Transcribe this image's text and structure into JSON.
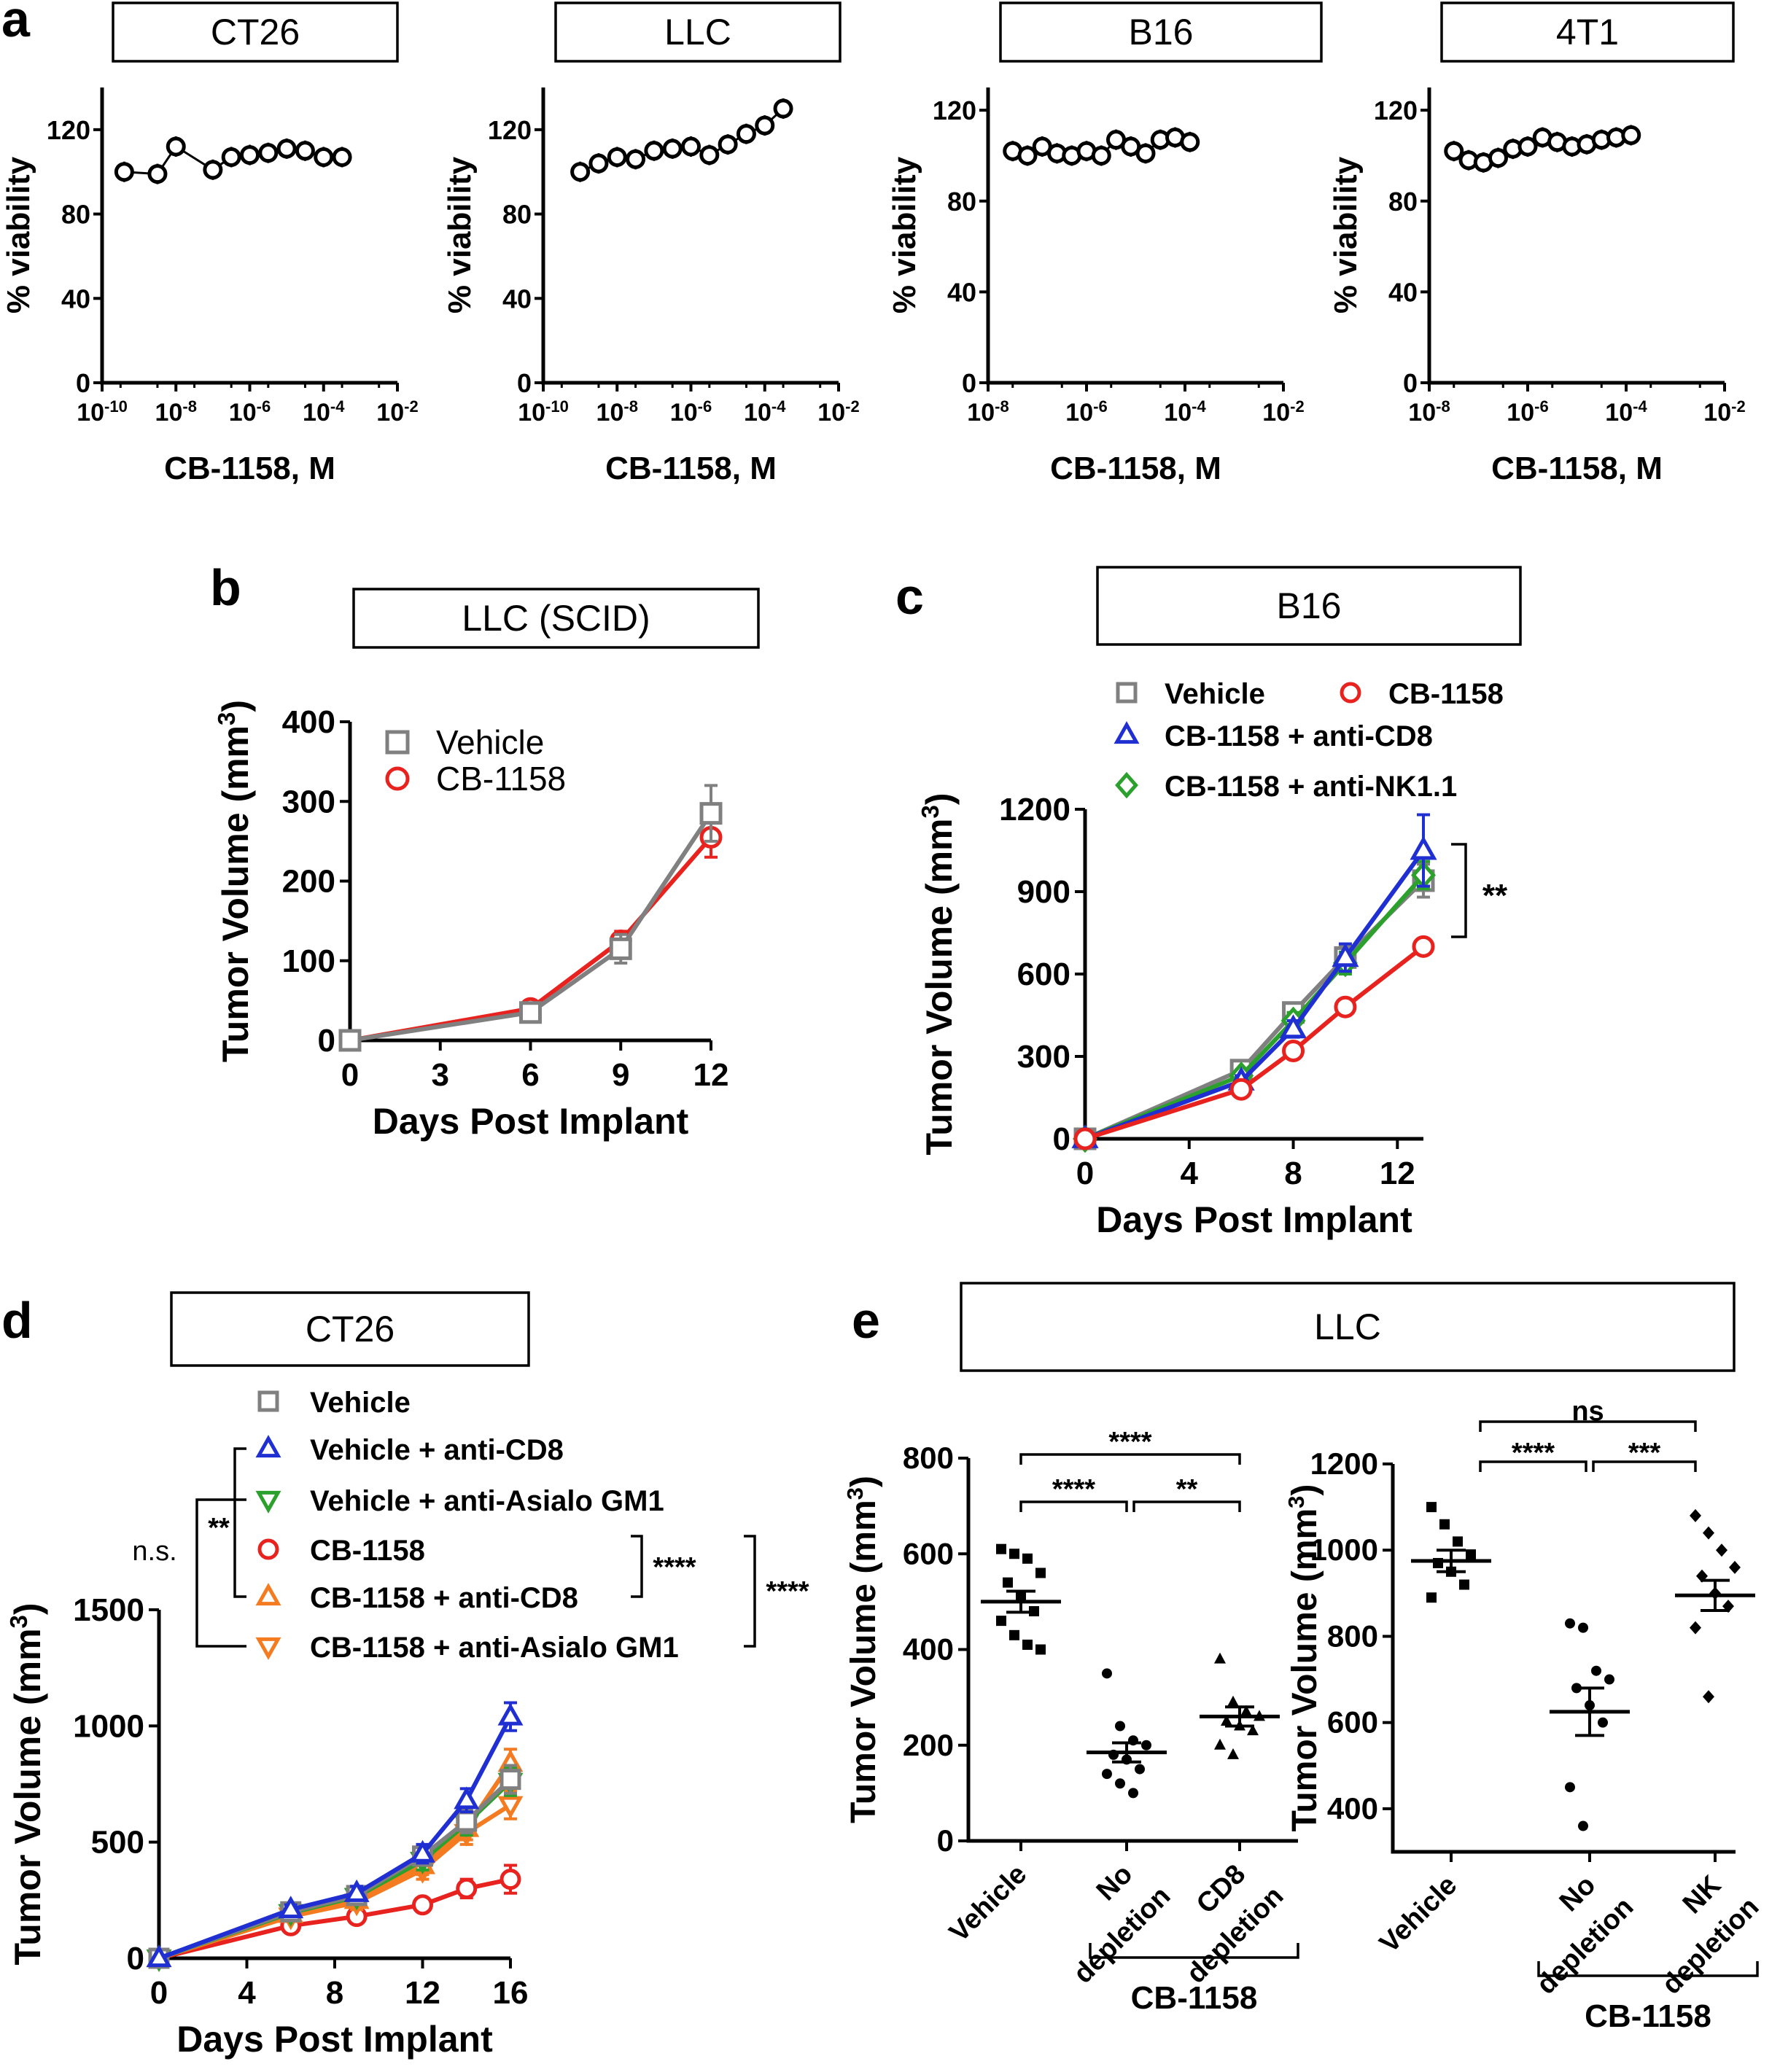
{
  "panels": {
    "a": "a",
    "b": "b",
    "c": "c",
    "d": "d",
    "e": "e"
  },
  "chart_data": [
    {
      "id": "a1",
      "type": "scatter",
      "title": "CT26",
      "xlabel": "CB-1158, M",
      "ylabel": "% viability",
      "xscale": "log",
      "xlim_exp": [
        -10,
        -2
      ],
      "ylim": [
        0,
        140
      ],
      "yticks": [
        "0",
        "40",
        "80",
        "120"
      ],
      "yticks_values": [
        0,
        40,
        80,
        120
      ],
      "xticks_base": "10",
      "xticks_exp": [
        "-10",
        "-8",
        "-6",
        "-4",
        "-2"
      ],
      "x_exp": [
        -9.4,
        -8.5,
        -8.0,
        -7.0,
        -6.5,
        -6.0,
        -5.5,
        -5.0,
        -4.5,
        -4.0,
        -3.5
      ],
      "y": [
        100,
        99,
        112,
        101,
        107,
        108,
        109,
        111,
        110,
        107,
        107
      ],
      "marker": "circle",
      "color": "#000000"
    },
    {
      "id": "a2",
      "type": "scatter",
      "title": "LLC",
      "xlabel": "CB-1158, M",
      "ylabel": "% viability",
      "xscale": "log",
      "xlim_exp": [
        -10,
        -2
      ],
      "ylim": [
        0,
        140
      ],
      "yticks": [
        "0",
        "40",
        "80",
        "120"
      ],
      "yticks_values": [
        0,
        40,
        80,
        120
      ],
      "xticks_base": "10",
      "xticks_exp": [
        "-10",
        "-8",
        "-6",
        "-4",
        "-2"
      ],
      "x_exp": [
        -9.0,
        -8.5,
        -8.0,
        -7.5,
        -7.0,
        -6.5,
        -6.0,
        -5.5,
        -5.0,
        -4.5,
        -4.0,
        -3.5
      ],
      "y": [
        100,
        104,
        107,
        106,
        110,
        111,
        112,
        108,
        113,
        118,
        122,
        130
      ],
      "marker": "circle",
      "color": "#000000"
    },
    {
      "id": "a3",
      "type": "scatter",
      "title": "B16",
      "xlabel": "CB-1158, M",
      "ylabel": "% viability",
      "xscale": "log",
      "xlim_exp": [
        -8,
        -2
      ],
      "ylim": [
        0,
        130
      ],
      "yticks": [
        "0",
        "40",
        "80",
        "120"
      ],
      "yticks_values": [
        0,
        40,
        80,
        120
      ],
      "xticks_base": "10",
      "xticks_exp": [
        "-8",
        "-6",
        "-4",
        "-2"
      ],
      "x_exp": [
        -7.5,
        -7.2,
        -6.9,
        -6.6,
        -6.3,
        -6.0,
        -5.7,
        -5.4,
        -5.1,
        -4.8,
        -4.5,
        -4.2,
        -3.9
      ],
      "y": [
        102,
        100,
        104,
        101,
        100,
        102,
        100,
        107,
        104,
        101,
        107,
        108,
        106
      ],
      "marker": "circle",
      "color": "#000000"
    },
    {
      "id": "a4",
      "type": "scatter",
      "title": "4T1",
      "xlabel": "CB-1158, M",
      "ylabel": "% viability",
      "xscale": "log",
      "xlim_exp": [
        -8,
        -2
      ],
      "ylim": [
        0,
        130
      ],
      "yticks": [
        "0",
        "40",
        "80",
        "120"
      ],
      "yticks_values": [
        0,
        40,
        80,
        120
      ],
      "xticks_base": "10",
      "xticks_exp": [
        "-8",
        "-6",
        "-4",
        "-2"
      ],
      "x_exp": [
        -7.5,
        -7.2,
        -6.9,
        -6.6,
        -6.3,
        -6.0,
        -5.7,
        -5.4,
        -5.1,
        -4.8,
        -4.5,
        -4.2,
        -3.9
      ],
      "y": [
        102,
        98,
        97,
        99,
        103,
        104,
        108,
        106,
        104,
        105,
        107,
        108,
        109
      ],
      "marker": "circle",
      "color": "#000000"
    },
    {
      "id": "b",
      "type": "line",
      "title": "LLC (SCID)",
      "xlabel": "Days Post Implant",
      "ylabel": "Tumor Volume (mm³)",
      "xlim": [
        0,
        12
      ],
      "ylim": [
        0,
        400
      ],
      "xticks": [
        "0",
        "3",
        "6",
        "9",
        "12"
      ],
      "xticks_values": [
        0,
        3,
        6,
        9,
        12
      ],
      "yticks": [
        "0",
        "100",
        "200",
        "300",
        "400"
      ],
      "yticks_values": [
        0,
        100,
        200,
        300,
        400
      ],
      "x": [
        0,
        6,
        9,
        12
      ],
      "series": [
        {
          "name": "Vehicle",
          "values": [
            0,
            35,
            115,
            285
          ],
          "errors": [
            0,
            6,
            18,
            35
          ],
          "color": "#808080",
          "marker": "square"
        },
        {
          "name": "CB-1158",
          "values": [
            0,
            40,
            125,
            255
          ],
          "errors": [
            0,
            5,
            12,
            25
          ],
          "color": "#e8231f",
          "marker": "circle"
        }
      ]
    },
    {
      "id": "c",
      "type": "line",
      "title": "B16",
      "xlabel": "Days Post Implant",
      "ylabel": "Tumor Volume (mm³)",
      "xlim": [
        0,
        13
      ],
      "ylim": [
        0,
        1200
      ],
      "xticks": [
        "0",
        "4",
        "8",
        "12"
      ],
      "xticks_values": [
        0,
        4,
        8,
        12
      ],
      "yticks": [
        "0",
        "300",
        "600",
        "900",
        "1200"
      ],
      "yticks_values": [
        0,
        300,
        600,
        900,
        1200
      ],
      "x": [
        0,
        6,
        8,
        10,
        13
      ],
      "series": [
        {
          "name": "Vehicle",
          "values": [
            0,
            250,
            460,
            660,
            940
          ],
          "errors": [
            0,
            20,
            30,
            40,
            60
          ],
          "color": "#808080",
          "marker": "square"
        },
        {
          "name": "CB-1158",
          "values": [
            0,
            180,
            320,
            480,
            700
          ],
          "errors": [
            0,
            15,
            20,
            25,
            20
          ],
          "color": "#e8231f",
          "marker": "circle"
        },
        {
          "name": "CB-1158 + anti-CD8",
          "values": [
            0,
            210,
            400,
            660,
            1050
          ],
          "errors": [
            0,
            20,
            30,
            50,
            130
          ],
          "color": "#1f2fd1",
          "marker": "triangle"
        },
        {
          "name": "CB-1158 + anti-NK1.1",
          "values": [
            0,
            230,
            430,
            640,
            960
          ],
          "errors": [
            0,
            20,
            30,
            40,
            50
          ],
          "color": "#2ca02c",
          "marker": "diamond"
        }
      ],
      "annotations": [
        "**"
      ]
    },
    {
      "id": "d",
      "type": "line",
      "title": "CT26",
      "xlabel": "Days Post Implant",
      "ylabel": "Tumor Volume (mm³)",
      "xlim": [
        0,
        16
      ],
      "ylim": [
        0,
        1500
      ],
      "xticks": [
        "0",
        "4",
        "8",
        "12",
        "16"
      ],
      "xticks_values": [
        0,
        4,
        8,
        12,
        16
      ],
      "yticks": [
        "0",
        "500",
        "1000",
        "1500"
      ],
      "yticks_values": [
        0,
        500,
        1000,
        1500
      ],
      "x": [
        0,
        6,
        9,
        12,
        14,
        16
      ],
      "series": [
        {
          "name": "Vehicle",
          "values": [
            0,
            200,
            270,
            440,
            590,
            770
          ],
          "errors": [
            0,
            20,
            30,
            40,
            50,
            60
          ],
          "color": "#808080",
          "marker": "square"
        },
        {
          "name": "Vehicle + anti-CD8",
          "values": [
            0,
            210,
            280,
            450,
            680,
            1040
          ],
          "errors": [
            0,
            20,
            30,
            40,
            50,
            60
          ],
          "color": "#1f2fd1",
          "marker": "triangle"
        },
        {
          "name": "Vehicle + anti-Asialo GM1",
          "values": [
            0,
            195,
            265,
            420,
            580,
            760
          ],
          "errors": [
            0,
            20,
            30,
            40,
            50,
            60
          ],
          "color": "#2ca02c",
          "marker": "triangle-down"
        },
        {
          "name": "CB-1158",
          "values": [
            0,
            140,
            180,
            230,
            300,
            340
          ],
          "errors": [
            0,
            15,
            20,
            25,
            40,
            60
          ],
          "color": "#e8231f",
          "marker": "circle"
        },
        {
          "name": "CB-1158 + anti-CD8",
          "values": [
            0,
            190,
            250,
            400,
            560,
            840
          ],
          "errors": [
            0,
            20,
            30,
            40,
            50,
            60
          ],
          "color": "#f47b20",
          "marker": "triangle"
        },
        {
          "name": "CB-1158 + anti-Asialo GM1",
          "values": [
            0,
            180,
            240,
            380,
            540,
            660
          ],
          "errors": [
            0,
            20,
            30,
            40,
            50,
            60
          ],
          "color": "#f47b20",
          "marker": "triangle-down"
        }
      ],
      "annotations": [
        "n.s.",
        "**",
        "****",
        "****"
      ]
    },
    {
      "id": "e1",
      "type": "scatter",
      "title": "LLC",
      "ylabel": "Tumor Volume (mm³)",
      "ylim": [
        0,
        800
      ],
      "yticks": [
        "0",
        "200",
        "400",
        "600",
        "800"
      ],
      "yticks_values": [
        0,
        200,
        400,
        600,
        800
      ],
      "categories": [
        "Vehicle",
        "No depletion",
        "CD8 depletion"
      ],
      "group_label": "CB-1158",
      "groups": [
        {
          "values": [
            610,
            600,
            590,
            560,
            540,
            510,
            480,
            460,
            430,
            410,
            400
          ],
          "mean": 500,
          "sem": 22,
          "marker": "square"
        },
        {
          "values": [
            350,
            240,
            210,
            200,
            180,
            170,
            150,
            140,
            120,
            100
          ],
          "mean": 185,
          "sem": 20,
          "marker": "circle"
        },
        {
          "values": [
            380,
            290,
            270,
            260,
            250,
            240,
            230,
            200,
            180
          ],
          "mean": 260,
          "sem": 20,
          "marker": "triangle"
        }
      ],
      "annotations": [
        "****",
        "****",
        "**"
      ]
    },
    {
      "id": "e2",
      "type": "scatter",
      "ylabel": "Tumor Volume (mm³)",
      "ylim": [
        300,
        1200
      ],
      "yticks": [
        "400",
        "600",
        "800",
        "1000",
        "1200"
      ],
      "yticks_values": [
        400,
        600,
        800,
        1000,
        1200
      ],
      "categories": [
        "Vehicle",
        "No depletion",
        "NK depletion"
      ],
      "group_label": "CB-1158",
      "groups": [
        {
          "values": [
            1100,
            1060,
            1020,
            990,
            970,
            950,
            920,
            890
          ],
          "mean": 975,
          "sem": 25,
          "marker": "square"
        },
        {
          "values": [
            830,
            820,
            720,
            700,
            680,
            640,
            600,
            450,
            360
          ],
          "mean": 625,
          "sem": 55,
          "marker": "circle"
        },
        {
          "values": [
            1080,
            1040,
            1000,
            960,
            940,
            900,
            870,
            820,
            660
          ],
          "mean": 895,
          "sem": 35,
          "marker": "diamond"
        }
      ],
      "annotations": [
        "ns",
        "****",
        "***"
      ]
    }
  ]
}
